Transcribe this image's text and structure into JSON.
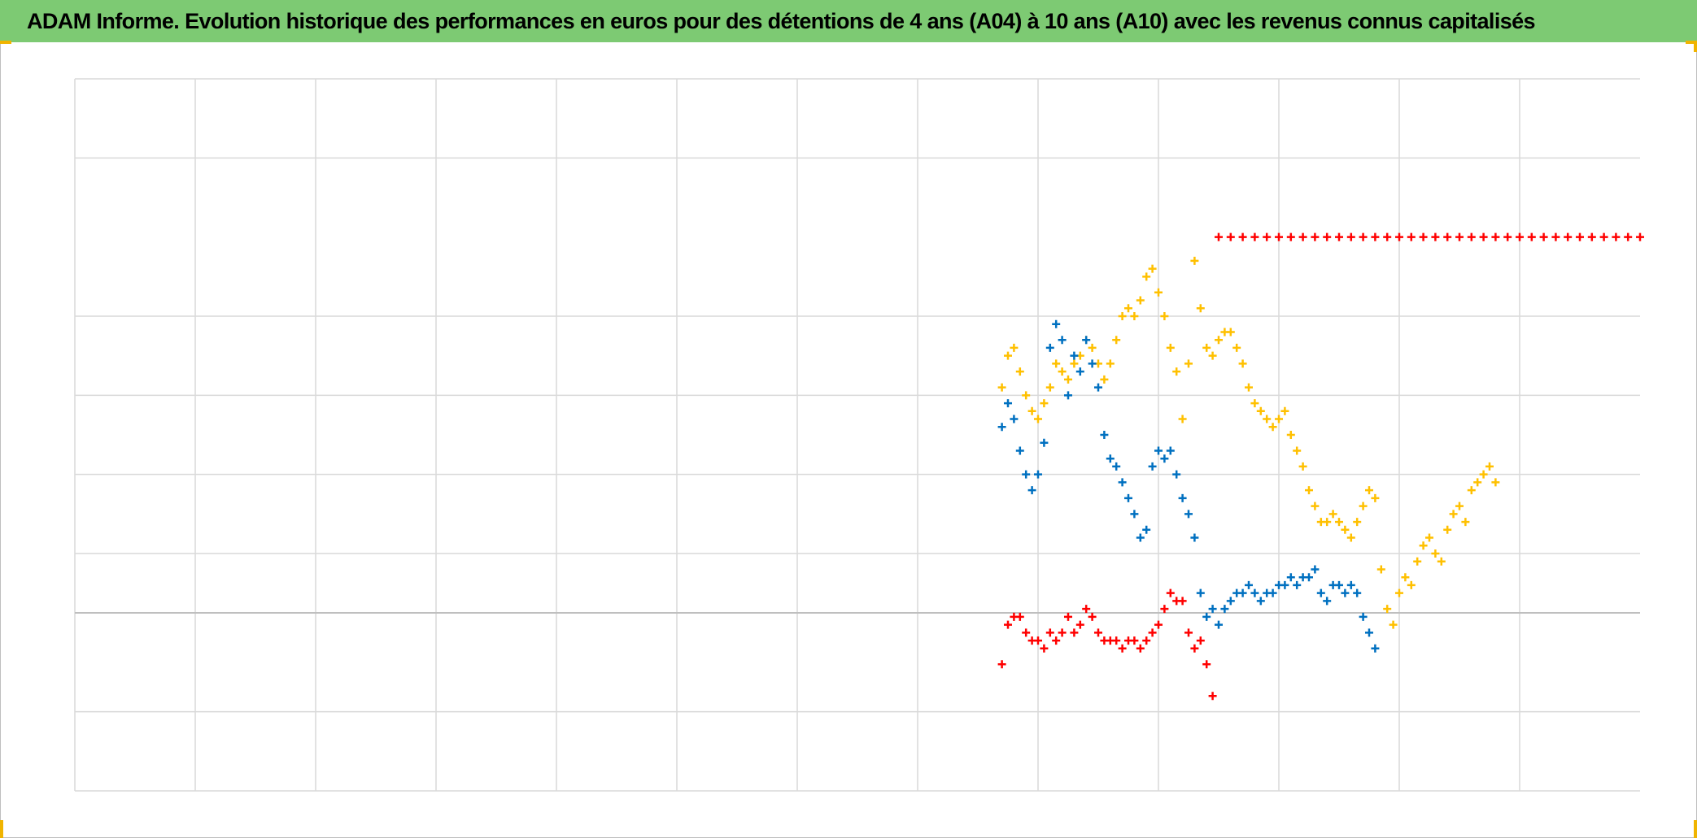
{
  "title": "ADAM Informe. Evolution historique des performances en euros pour des détentions de 4 ans (A04) à 10 ans (A10) avec les revenus connus capitalisés",
  "colors": {
    "title_bg": "#7dca73",
    "grid": "#d9d9d9",
    "axis_zero": "#bfbfbf",
    "handle": "#f0b400"
  },
  "chart_data": {
    "type": "scatter",
    "title": "ADAM Informe. Evolution historique des performances en euros pour des détentions de 4 ans (A04) à 10 ans (A10) avec les revenus connus capitalisés",
    "xlabel": "",
    "ylabel": "",
    "x_tick_labels_shown": false,
    "y_tick_labels_shown": false,
    "xlim": [
      0,
      13
    ],
    "ylim": [
      -0.23,
      0.67
    ],
    "grid": true,
    "legend": "none",
    "x_gridlines": [
      1,
      2,
      3,
      4,
      5,
      6,
      7,
      8,
      9,
      10,
      11,
      12
    ],
    "y_gridlines": [
      -0.13,
      0.07,
      0.17,
      0.27,
      0.37,
      0.57
    ],
    "zero_line": -0.005,
    "series": [
      {
        "marker": "plus",
        "color": "#ffc000",
        "points": [
          [
            7.7,
            0.28
          ],
          [
            7.75,
            0.32
          ],
          [
            7.8,
            0.33
          ],
          [
            7.85,
            0.3
          ],
          [
            7.9,
            0.27
          ],
          [
            7.95,
            0.25
          ],
          [
            8.0,
            0.24
          ],
          [
            8.05,
            0.26
          ],
          [
            8.1,
            0.28
          ],
          [
            8.15,
            0.31
          ],
          [
            8.2,
            0.3
          ],
          [
            8.25,
            0.29
          ],
          [
            8.3,
            0.31
          ],
          [
            8.35,
            0.32
          ],
          [
            8.4,
            0.34
          ],
          [
            8.45,
            0.33
          ],
          [
            8.5,
            0.31
          ],
          [
            8.55,
            0.29
          ],
          [
            8.6,
            0.31
          ],
          [
            8.65,
            0.34
          ],
          [
            8.7,
            0.37
          ],
          [
            8.75,
            0.38
          ],
          [
            8.8,
            0.37
          ],
          [
            8.85,
            0.39
          ],
          [
            8.9,
            0.42
          ],
          [
            8.95,
            0.43
          ],
          [
            9.0,
            0.4
          ],
          [
            9.05,
            0.37
          ],
          [
            9.1,
            0.33
          ],
          [
            9.15,
            0.3
          ],
          [
            9.2,
            0.24
          ],
          [
            9.25,
            0.31
          ],
          [
            9.3,
            0.44
          ],
          [
            9.35,
            0.38
          ],
          [
            9.4,
            0.33
          ],
          [
            9.45,
            0.32
          ],
          [
            9.5,
            0.34
          ],
          [
            9.55,
            0.35
          ],
          [
            9.6,
            0.35
          ],
          [
            9.65,
            0.33
          ],
          [
            9.7,
            0.31
          ],
          [
            9.75,
            0.28
          ],
          [
            9.8,
            0.26
          ],
          [
            9.85,
            0.25
          ],
          [
            9.9,
            0.24
          ],
          [
            9.95,
            0.23
          ],
          [
            10.0,
            0.24
          ],
          [
            10.05,
            0.25
          ],
          [
            10.1,
            0.22
          ],
          [
            10.15,
            0.2
          ],
          [
            10.2,
            0.18
          ],
          [
            10.25,
            0.15
          ],
          [
            10.3,
            0.13
          ],
          [
            10.35,
            0.11
          ],
          [
            10.4,
            0.11
          ],
          [
            10.45,
            0.12
          ],
          [
            10.5,
            0.11
          ],
          [
            10.55,
            0.1
          ],
          [
            10.6,
            0.09
          ],
          [
            10.65,
            0.11
          ],
          [
            10.7,
            0.13
          ],
          [
            10.75,
            0.15
          ],
          [
            10.8,
            0.14
          ],
          [
            10.85,
            0.05
          ],
          [
            10.9,
            0.0
          ],
          [
            10.95,
            -0.02
          ],
          [
            11.0,
            0.02
          ],
          [
            11.05,
            0.04
          ],
          [
            11.1,
            0.03
          ],
          [
            11.15,
            0.06
          ],
          [
            11.2,
            0.08
          ],
          [
            11.25,
            0.09
          ],
          [
            11.3,
            0.07
          ],
          [
            11.35,
            0.06
          ],
          [
            11.4,
            0.1
          ],
          [
            11.45,
            0.12
          ],
          [
            11.5,
            0.13
          ],
          [
            11.55,
            0.11
          ],
          [
            11.6,
            0.15
          ],
          [
            11.65,
            0.16
          ],
          [
            11.7,
            0.17
          ],
          [
            11.75,
            0.18
          ],
          [
            11.8,
            0.16
          ]
        ]
      },
      {
        "marker": "plus",
        "color": "#0070c0",
        "points": [
          [
            7.7,
            0.23
          ],
          [
            7.75,
            0.26
          ],
          [
            7.8,
            0.24
          ],
          [
            7.85,
            0.2
          ],
          [
            7.9,
            0.17
          ],
          [
            7.95,
            0.15
          ],
          [
            8.0,
            0.17
          ],
          [
            8.05,
            0.21
          ],
          [
            8.1,
            0.33
          ],
          [
            8.15,
            0.36
          ],
          [
            8.2,
            0.34
          ],
          [
            8.25,
            0.27
          ],
          [
            8.3,
            0.32
          ],
          [
            8.35,
            0.3
          ],
          [
            8.4,
            0.34
          ],
          [
            8.45,
            0.31
          ],
          [
            8.5,
            0.28
          ],
          [
            8.55,
            0.22
          ],
          [
            8.6,
            0.19
          ],
          [
            8.65,
            0.18
          ],
          [
            8.7,
            0.16
          ],
          [
            8.75,
            0.14
          ],
          [
            8.8,
            0.12
          ],
          [
            8.85,
            0.09
          ],
          [
            8.9,
            0.1
          ],
          [
            8.95,
            0.18
          ],
          [
            9.0,
            0.2
          ],
          [
            9.05,
            0.19
          ],
          [
            9.1,
            0.2
          ],
          [
            9.15,
            0.17
          ],
          [
            9.2,
            0.14
          ],
          [
            9.25,
            0.12
          ],
          [
            9.3,
            0.09
          ],
          [
            9.35,
            0.02
          ],
          [
            9.4,
            -0.01
          ],
          [
            9.45,
            0.0
          ],
          [
            9.5,
            -0.02
          ],
          [
            9.55,
            0.0
          ],
          [
            9.6,
            0.01
          ],
          [
            9.65,
            0.02
          ],
          [
            9.7,
            0.02
          ],
          [
            9.75,
            0.03
          ],
          [
            9.8,
            0.02
          ],
          [
            9.85,
            0.01
          ],
          [
            9.9,
            0.02
          ],
          [
            9.95,
            0.02
          ],
          [
            10.0,
            0.03
          ],
          [
            10.05,
            0.03
          ],
          [
            10.1,
            0.04
          ],
          [
            10.15,
            0.03
          ],
          [
            10.2,
            0.04
          ],
          [
            10.25,
            0.04
          ],
          [
            10.3,
            0.05
          ],
          [
            10.35,
            0.02
          ],
          [
            10.4,
            0.01
          ],
          [
            10.45,
            0.03
          ],
          [
            10.5,
            0.03
          ],
          [
            10.55,
            0.02
          ],
          [
            10.6,
            0.03
          ],
          [
            10.65,
            0.02
          ],
          [
            10.7,
            -0.01
          ],
          [
            10.75,
            -0.03
          ],
          [
            10.8,
            -0.05
          ]
        ]
      },
      {
        "marker": "plus",
        "color": "#ff0000",
        "points": [
          [
            7.7,
            -0.07
          ],
          [
            7.75,
            -0.02
          ],
          [
            7.8,
            -0.01
          ],
          [
            7.85,
            -0.01
          ],
          [
            7.9,
            -0.03
          ],
          [
            7.95,
            -0.04
          ],
          [
            8.0,
            -0.04
          ],
          [
            8.05,
            -0.05
          ],
          [
            8.1,
            -0.03
          ],
          [
            8.15,
            -0.04
          ],
          [
            8.2,
            -0.03
          ],
          [
            8.25,
            -0.01
          ],
          [
            8.3,
            -0.03
          ],
          [
            8.35,
            -0.02
          ],
          [
            8.4,
            0.0
          ],
          [
            8.45,
            -0.01
          ],
          [
            8.5,
            -0.03
          ],
          [
            8.55,
            -0.04
          ],
          [
            8.6,
            -0.04
          ],
          [
            8.65,
            -0.04
          ],
          [
            8.7,
            -0.05
          ],
          [
            8.75,
            -0.04
          ],
          [
            8.8,
            -0.04
          ],
          [
            8.85,
            -0.05
          ],
          [
            8.9,
            -0.04
          ],
          [
            8.95,
            -0.03
          ],
          [
            9.0,
            -0.02
          ],
          [
            9.05,
            0.0
          ],
          [
            9.1,
            0.02
          ],
          [
            9.15,
            0.01
          ],
          [
            9.2,
            0.01
          ],
          [
            9.25,
            -0.03
          ],
          [
            9.3,
            -0.05
          ],
          [
            9.35,
            -0.04
          ],
          [
            9.4,
            -0.07
          ],
          [
            9.45,
            -0.11
          ],
          [
            9.5,
            0.47
          ],
          [
            9.6,
            0.47
          ],
          [
            9.7,
            0.47
          ],
          [
            9.8,
            0.47
          ],
          [
            9.9,
            0.47
          ],
          [
            10.0,
            0.47
          ],
          [
            10.1,
            0.47
          ],
          [
            10.2,
            0.47
          ],
          [
            10.3,
            0.47
          ],
          [
            10.4,
            0.47
          ],
          [
            10.5,
            0.47
          ],
          [
            10.6,
            0.47
          ],
          [
            10.7,
            0.47
          ],
          [
            10.8,
            0.47
          ],
          [
            10.9,
            0.47
          ],
          [
            11.0,
            0.47
          ],
          [
            11.1,
            0.47
          ],
          [
            11.2,
            0.47
          ],
          [
            11.3,
            0.47
          ],
          [
            11.4,
            0.47
          ],
          [
            11.5,
            0.47
          ],
          [
            11.6,
            0.47
          ],
          [
            11.7,
            0.47
          ],
          [
            11.8,
            0.47
          ],
          [
            11.9,
            0.47
          ],
          [
            12.0,
            0.47
          ],
          [
            12.1,
            0.47
          ],
          [
            12.2,
            0.47
          ],
          [
            12.3,
            0.47
          ],
          [
            12.4,
            0.47
          ],
          [
            12.5,
            0.47
          ],
          [
            12.6,
            0.47
          ],
          [
            12.7,
            0.47
          ],
          [
            12.8,
            0.47
          ],
          [
            12.9,
            0.47
          ],
          [
            13.0,
            0.47
          ]
        ]
      }
    ]
  }
}
